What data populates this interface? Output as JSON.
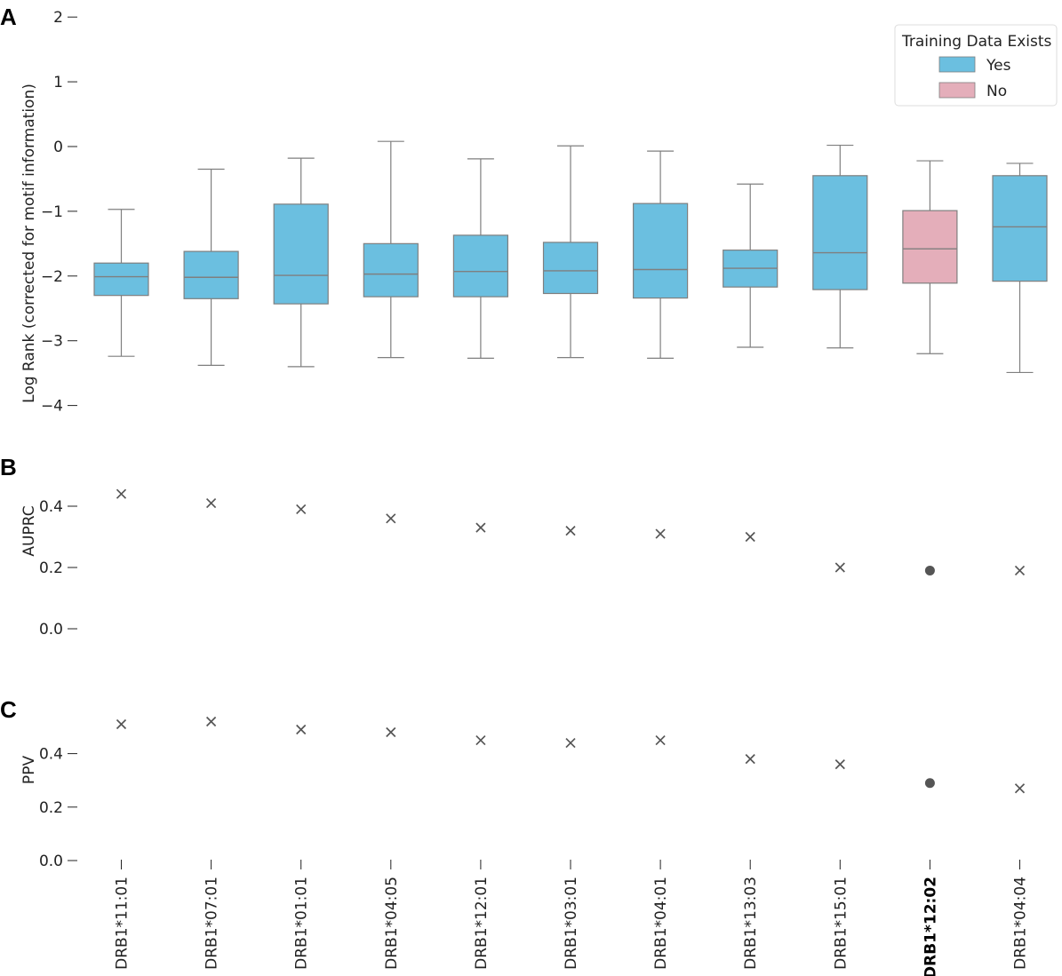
{
  "colors": {
    "yes": "#6BBFE0",
    "no": "#E4AEBA",
    "stroke": "#7f7f7f",
    "marker": "#555555"
  },
  "chart_data": [
    {
      "panel": "A",
      "type": "box",
      "ylabel": "Log Rank (corrected for motif information)",
      "ylim": [
        -4,
        2
      ],
      "yticks": [
        "2",
        "1",
        "0",
        "−1",
        "−2",
        "−3",
        "−4"
      ],
      "legend": {
        "title": "Training Data Exists",
        "entries": [
          "Yes",
          "No"
        ],
        "position": "top-right"
      },
      "categories": [
        "DRB1*11:01",
        "DRB1*07:01",
        "DRB1*01:01",
        "DRB1*04:05",
        "DRB1*12:01",
        "DRB1*03:01",
        "DRB1*04:01",
        "DRB1*13:03",
        "DRB1*15:01",
        "DRB1*12:02",
        "DRB1*04:04"
      ],
      "training_data_exists": [
        "Yes",
        "Yes",
        "Yes",
        "Yes",
        "Yes",
        "Yes",
        "Yes",
        "Yes",
        "Yes",
        "No",
        "Yes"
      ],
      "boxes": [
        {
          "min": -3.24,
          "q1": -2.3,
          "median": -2.01,
          "q3": -1.8,
          "max": -0.97
        },
        {
          "min": -3.38,
          "q1": -2.35,
          "median": -2.02,
          "q3": -1.62,
          "max": -0.35
        },
        {
          "min": -3.4,
          "q1": -2.43,
          "median": -1.99,
          "q3": -0.89,
          "max": -0.18
        },
        {
          "min": -3.26,
          "q1": -2.32,
          "median": -1.97,
          "q3": -1.5,
          "max": 0.08
        },
        {
          "min": -3.27,
          "q1": -2.32,
          "median": -1.93,
          "q3": -1.37,
          "max": -0.19
        },
        {
          "min": -3.26,
          "q1": -2.27,
          "median": -1.92,
          "q3": -1.48,
          "max": 0.01
        },
        {
          "min": -3.27,
          "q1": -2.34,
          "median": -1.9,
          "q3": -0.88,
          "max": -0.07
        },
        {
          "min": -3.1,
          "q1": -2.17,
          "median": -1.88,
          "q3": -1.6,
          "max": -0.58
        },
        {
          "min": -3.11,
          "q1": -2.21,
          "median": -1.64,
          "q3": -0.45,
          "max": 0.02
        },
        {
          "min": -3.2,
          "q1": -2.11,
          "median": -1.58,
          "q3": -0.99,
          "max": -0.22
        },
        {
          "min": -3.49,
          "q1": -2.08,
          "median": -1.24,
          "q3": -0.45,
          "max": -0.26
        }
      ]
    },
    {
      "panel": "B",
      "type": "scatter",
      "ylabel": "AUPRC",
      "ylim": [
        0,
        0.5
      ],
      "yticks": [
        "0.4",
        "0.2",
        "0.0"
      ],
      "values": [
        0.44,
        0.41,
        0.39,
        0.36,
        0.33,
        0.32,
        0.31,
        0.3,
        0.2,
        0.19,
        0.19
      ],
      "markers": [
        "x",
        "x",
        "x",
        "x",
        "x",
        "x",
        "x",
        "x",
        "x",
        "dot",
        "x"
      ]
    },
    {
      "panel": "C",
      "type": "scatter",
      "ylabel": "PPV",
      "ylim": [
        0,
        0.55
      ],
      "yticks": [
        "0.4",
        "0.2",
        "0.0"
      ],
      "values": [
        0.51,
        0.52,
        0.49,
        0.48,
        0.45,
        0.44,
        0.45,
        0.38,
        0.36,
        0.29,
        0.27
      ],
      "markers": [
        "x",
        "x",
        "x",
        "x",
        "x",
        "x",
        "x",
        "x",
        "x",
        "dot",
        "x"
      ]
    }
  ]
}
